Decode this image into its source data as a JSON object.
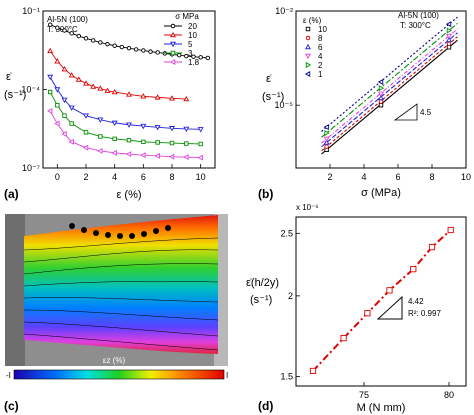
{
  "chart_data": [
    {
      "panel": "(a)",
      "type": "scatter",
      "annotations": [
        "Al-5N (100)",
        "T: 300°C"
      ],
      "legend_title": "σ MPa",
      "xlabel": "ε (%)",
      "ylabel_top": "ε̇",
      "ylabel_bottom": "(s⁻¹)",
      "xlim": [
        -1,
        11
      ],
      "ylog": true,
      "ylim": [
        1e-07,
        0.1
      ],
      "xticks": [
        0,
        2,
        4,
        6,
        8,
        10
      ],
      "xtick_labels": [
        "0",
        "2",
        "4",
        "6",
        "8",
        "10"
      ],
      "yticks": [
        1e-07,
        0.0001,
        0.1
      ],
      "ytick_labels": [
        "10⁻⁷",
        "10⁻⁴",
        "10⁻¹"
      ],
      "series": [
        {
          "name": "20",
          "color": "#000000",
          "marker": "circle",
          "x": [
            -0.5,
            0,
            0.5,
            1,
            1.5,
            2,
            2.5,
            3,
            3.5,
            4,
            4.5,
            5,
            5.5,
            6,
            6.5,
            7,
            7.5,
            8,
            8.5,
            9,
            9.5,
            10,
            10.5
          ],
          "y": [
            0.03,
            0.023,
            0.018,
            0.014,
            0.011,
            0.009,
            0.0075,
            0.0063,
            0.0054,
            0.0047,
            0.0042,
            0.0038,
            0.0034,
            0.0031,
            0.0028,
            0.0026,
            0.0024,
            0.0022,
            0.00205,
            0.0019,
            0.0018,
            0.0017,
            0.0016
          ]
        },
        {
          "name": "10",
          "color": "#e00000",
          "marker": "triangle-up",
          "x": [
            -0.5,
            0,
            0.5,
            1,
            1.5,
            2,
            2.5,
            3,
            3.5,
            4,
            5,
            6,
            7,
            8,
            9
          ],
          "y": [
            0.003,
            0.0012,
            0.0006,
            0.00035,
            0.00024,
            0.00017,
            0.00013,
            0.00011,
            9e-05,
            8e-05,
            6.5e-05,
            5.5e-05,
            5e-05,
            4.6e-05,
            4.3e-05
          ]
        },
        {
          "name": "5",
          "color": "#2020e0",
          "marker": "triangle-down",
          "x": [
            -0.5,
            0,
            0.5,
            1,
            2,
            3,
            4,
            5,
            6,
            7,
            8,
            9,
            10
          ],
          "y": [
            0.0003,
            0.0001,
            4e-05,
            2e-05,
            1e-05,
            7e-06,
            5.3e-06,
            4.5e-06,
            4e-06,
            3.6e-06,
            3.3e-06,
            3.1e-06,
            3e-06
          ]
        },
        {
          "name": "3",
          "color": "#009000",
          "marker": "square",
          "x": [
            -0.5,
            0,
            0.5,
            1,
            2,
            3,
            4,
            5,
            6,
            7,
            8,
            9,
            10
          ],
          "y": [
            8e-05,
            2.5e-05,
            1e-05,
            5e-06,
            2.3e-06,
            1.6e-06,
            1.3e-06,
            1.15e-06,
            1e-06,
            9.5e-07,
            9e-07,
            8.6e-07,
            8.3e-07
          ]
        },
        {
          "name": "1.8",
          "color": "#e040e0",
          "marker": "triangle-left",
          "x": [
            -0.5,
            0,
            0.5,
            1,
            2,
            3,
            4,
            5,
            6,
            7,
            8,
            9,
            10
          ],
          "y": [
            1.5e-05,
            5e-06,
            2e-06,
            1e-06,
            6e-07,
            4.5e-07,
            3.8e-07,
            3.4e-07,
            3.1e-07,
            2.9e-07,
            2.7e-07,
            2.6e-07,
            2.5e-07
          ]
        }
      ]
    },
    {
      "panel": "(b)",
      "type": "scatter",
      "annotations": [
        "Al-5N (100)",
        "T: 300°C"
      ],
      "legend_title": "ε (%)",
      "slope_label": "4.5",
      "xlabel": "σ (MPa)",
      "ylabel_top": "ε̇",
      "ylabel_bottom": "(s⁻¹)",
      "xlim": [
        0,
        10
      ],
      "ylog": true,
      "ylim": [
        1e-07,
        0.01
      ],
      "xticks": [
        2,
        4,
        6,
        8,
        10
      ],
      "xtick_labels": [
        "2",
        "4",
        "6",
        "8",
        "10"
      ],
      "yticks": [
        1e-07,
        1e-05,
        0.01
      ],
      "ytick_labels": [
        "",
        "10⁻⁵",
        "10⁻²"
      ],
      "series": [
        {
          "name": "10",
          "color": "#000000",
          "marker": "square",
          "x": [
            1.8,
            5,
            9
          ],
          "y": [
            3.8e-07,
            1e-05,
            0.0007
          ]
        },
        {
          "name": "8",
          "color": "#e00000",
          "marker": "circle",
          "x": [
            1.8,
            5,
            9
          ],
          "y": [
            4.8e-07,
            1.3e-05,
            0.0009
          ]
        },
        {
          "name": "6",
          "color": "#2020e0",
          "marker": "triangle-up",
          "x": [
            1.8,
            5,
            9
          ],
          "y": [
            6.5e-07,
            1.7e-05,
            0.0012
          ]
        },
        {
          "name": "4",
          "color": "#e040e0",
          "marker": "triangle-down",
          "x": [
            1.8,
            5,
            9
          ],
          "y": [
            8.5e-07,
            2.3e-05,
            0.0016
          ]
        },
        {
          "name": "2",
          "color": "#009000",
          "marker": "triangle-right",
          "x": [
            1.8,
            5,
            9
          ],
          "y": [
            1.3e-06,
            3.5e-05,
            0.0024
          ]
        },
        {
          "name": "1",
          "color": "#000090",
          "marker": "triangle-left",
          "x": [
            1.8,
            5,
            9
          ],
          "y": [
            2e-06,
            5.5e-05,
            0.0038
          ]
        }
      ]
    },
    {
      "panel": "(c)",
      "type": "heatmap",
      "colorbar_label": "εz (%)",
      "colorbar_min_label": "-I",
      "colorbar_max_label": "I"
    },
    {
      "panel": "(d)",
      "type": "line",
      "top_label": "x 10⁻⁶",
      "slope_label": "4.42",
      "r2_label": "R²: 0.997",
      "xlabel": "M (N mm)",
      "ylabel_top": "ε̇(h/2y)",
      "ylabel_bottom": "(s⁻¹)",
      "xlim": [
        71,
        81
      ],
      "ylog": true,
      "ylim": [
        1.45e-06,
        2.65e-06
      ],
      "xticks": [
        75,
        80
      ],
      "xtick_labels": [
        "75",
        "80"
      ],
      "yticks": [
        1.5e-06,
        2e-06,
        2.5e-06
      ],
      "ytick_labels": [
        "1.5",
        "2",
        "2.5"
      ],
      "series": [
        {
          "color": "#e00000",
          "marker": "square",
          "x": [
            72,
            73.8,
            75.2,
            76.5,
            77.9,
            79,
            80.1
          ],
          "y": [
            1.53e-06,
            1.72e-06,
            1.88e-06,
            2.04e-06,
            2.2e-06,
            2.38e-06,
            2.53e-06
          ]
        }
      ]
    }
  ]
}
